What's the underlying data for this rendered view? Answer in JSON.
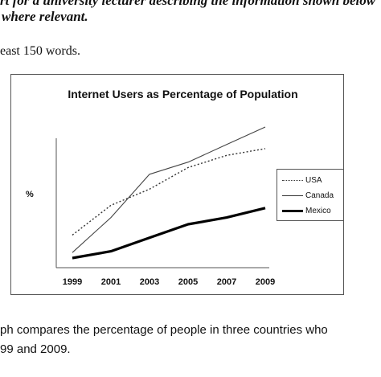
{
  "document": {
    "line1": "rt for a university lecturer describing the information shown below",
    "line2": "where relevant.",
    "line3": "east 150 words.",
    "para1": "ph compares the percentage of people in three countries who",
    "para2": "99 and 2009."
  },
  "colors": {
    "usa": "#333333",
    "canada": "#444444",
    "mexico": "#000000"
  },
  "chart_data": {
    "type": "line",
    "title": "Internet Users as Percentage of Population",
    "ylabel": "%",
    "xlabel": "",
    "x": [
      1999,
      2001,
      2003,
      2005,
      2007,
      2009
    ],
    "x_tick_labels": [
      "1999",
      "2001",
      "2003",
      "2005",
      "2007",
      "2009"
    ],
    "ylim": [
      0,
      100
    ],
    "legend_position": "right",
    "grid": false,
    "series": [
      {
        "name": "USA",
        "style": "dotted",
        "values": [
          20,
          42,
          54,
          70,
          79,
          84
        ]
      },
      {
        "name": "Canada",
        "style": "thin",
        "values": [
          7,
          33,
          65,
          74,
          87,
          100
        ]
      },
      {
        "name": "Mexico",
        "style": "thick",
        "values": [
          3,
          8,
          18,
          28,
          33,
          40
        ]
      }
    ]
  }
}
